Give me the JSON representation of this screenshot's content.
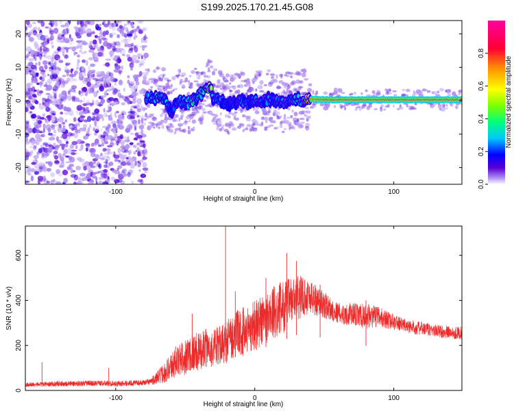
{
  "title": "S199.2025.170.21.45.G08",
  "colors": {
    "snr_line": "#ee2b2b",
    "spectrogram_background": "#ffffff",
    "colormap": [
      "#ffffff",
      "#ab8cf2",
      "#5a00d6",
      "#0000ff",
      "#00c8ff",
      "#00ff7a",
      "#7dff00",
      "#ffff00",
      "#ff9900",
      "#ff0033",
      "#ff00a0"
    ]
  },
  "chart_data": [
    {
      "type": "heatmap",
      "xlabel": "Height of straight line (km)",
      "ylabel": "Frequency (Hz)",
      "xlim": [
        -165,
        149
      ],
      "ylim": [
        -25,
        24
      ],
      "x_ticks": [
        "-100",
        "0",
        "100"
      ],
      "y_ticks": [
        "-20",
        "-10",
        "0",
        "10",
        "20"
      ],
      "colorbar": {
        "label": "Normalized spectral amplitude",
        "range": [
          0,
          1
        ],
        "ticks": [
          "0.0",
          "0.2",
          "0.4",
          "0.6",
          "0.8"
        ]
      },
      "noise_region_x_range": [
        -165,
        -78
      ],
      "signal_trace": {
        "x": [
          -78,
          -72,
          -65,
          -60,
          -55,
          -50,
          -45,
          -40,
          -35,
          -32,
          -30,
          -25,
          -20,
          -15,
          -10,
          -5,
          0,
          5,
          10,
          15,
          20,
          25,
          30,
          35,
          40,
          50,
          60,
          70,
          80,
          100,
          120,
          149
        ],
        "frequency_hz": [
          0.5,
          1.0,
          0.5,
          -3.5,
          0.5,
          -1.0,
          0.0,
          1.5,
          3.5,
          4.0,
          1.0,
          0.0,
          -1.0,
          -0.5,
          0.0,
          -1.0,
          0.0,
          -0.5,
          0.5,
          0.0,
          -0.5,
          0.0,
          0.5,
          0.0,
          0.5,
          0.3,
          0.3,
          0.3,
          0.3,
          0.3,
          0.3,
          0.3
        ],
        "peak_amplitude": [
          0.25,
          0.3,
          0.3,
          0.2,
          0.25,
          0.25,
          0.3,
          0.3,
          0.4,
          0.6,
          0.25,
          0.22,
          0.2,
          0.2,
          0.22,
          0.22,
          0.24,
          0.22,
          0.24,
          0.25,
          0.25,
          0.28,
          0.3,
          0.3,
          0.8,
          0.85,
          0.85,
          0.9,
          0.9,
          0.9,
          0.9,
          0.9
        ]
      }
    },
    {
      "type": "line",
      "xlabel": "Height of straight line (km)",
      "ylabel": "SNR (10 * v/v)",
      "xlim": [
        -165,
        149
      ],
      "ylim": [
        0,
        730
      ],
      "x_ticks": [
        "-100",
        "0",
        "100"
      ],
      "y_ticks": [
        "0",
        "200",
        "400",
        "600"
      ],
      "series": [
        {
          "x": [
            -165,
            -150,
            -140,
            -130,
            -120,
            -110,
            -100,
            -90,
            -80,
            -75,
            -70,
            -65,
            -60,
            -55,
            -50,
            -45,
            -40,
            -35,
            -30,
            -25,
            -22,
            -20,
            -15,
            -10,
            -5,
            0,
            5,
            10,
            15,
            20,
            25,
            30,
            35,
            40,
            45,
            50,
            55,
            60,
            65,
            70,
            75,
            80,
            85,
            90,
            95,
            100,
            105,
            110,
            120,
            130,
            140,
            149
          ],
          "y": [
            25,
            28,
            30,
            30,
            32,
            32,
            30,
            32,
            35,
            40,
            55,
            80,
            110,
            130,
            150,
            170,
            170,
            190,
            185,
            200,
            215,
            220,
            245,
            260,
            270,
            290,
            310,
            330,
            350,
            370,
            390,
            410,
            420,
            415,
            400,
            380,
            360,
            345,
            335,
            340,
            330,
            330,
            330,
            325,
            315,
            305,
            295,
            285,
            275,
            265,
            258,
            255
          ],
          "noise": [
            10,
            10,
            12,
            12,
            12,
            12,
            12,
            12,
            12,
            15,
            30,
            45,
            60,
            70,
            80,
            85,
            85,
            85,
            85,
            90,
            95,
            100,
            100,
            110,
            110,
            115,
            120,
            120,
            120,
            120,
            110,
            100,
            90,
            80,
            70,
            60,
            50,
            45,
            45,
            50,
            55,
            55,
            50,
            45,
            40,
            35,
            30,
            30,
            30,
            28,
            28,
            28
          ]
        }
      ],
      "spikes": [
        {
          "x": -153,
          "y": 125
        },
        {
          "x": -105,
          "y": 100
        },
        {
          "x": -57,
          "y": 195
        },
        {
          "x": -45,
          "y": 340
        },
        {
          "x": -37,
          "y": 260
        },
        {
          "x": -21,
          "y": 730
        },
        {
          "x": -14,
          "y": 440
        },
        {
          "x": 8,
          "y": 500
        },
        {
          "x": 23,
          "y": 610
        },
        {
          "x": 30,
          "y": 575
        },
        {
          "x": 47,
          "y": 470
        },
        {
          "x": 80,
          "y": 400
        }
      ]
    }
  ]
}
